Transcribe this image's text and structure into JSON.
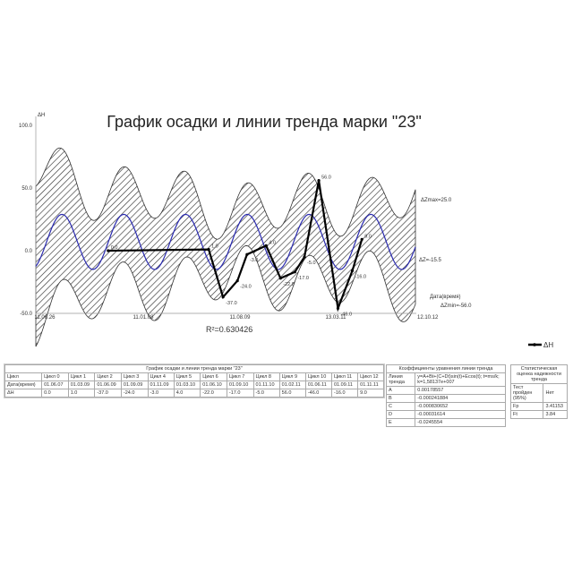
{
  "chart_data": {
    "type": "line",
    "title": "График осадки и линии тренда марки \"23\"",
    "ylabel": "ΔH",
    "xlabel": "Дата(время)",
    "ylim": [
      -50,
      100
    ],
    "yticks": [
      "100.0",
      "50.0",
      "0.0",
      "-50.0"
    ],
    "xticks": [
      "11.06.26",
      "11.01.08",
      "11.08.09",
      "13.03.11",
      "12.10.12"
    ],
    "grid": false,
    "legend_position": "right",
    "series": [
      {
        "name": "ΔH",
        "color": "#000000",
        "x": [
          "01.06.07",
          "01.03.09",
          "01.06.09",
          "01.09.09",
          "01.11.09",
          "01.03.10",
          "01.06.10",
          "01.09.10",
          "01.11.10",
          "01.02.11",
          "01.06.11",
          "01.09.11",
          "01.11.11"
        ],
        "y": [
          0.0,
          1.0,
          -37.0,
          -24.0,
          -3.0,
          4.0,
          -22.0,
          -17.0,
          -5.0,
          56.0,
          -46.0,
          -16.0,
          9.0
        ],
        "labels": [
          "0.0",
          "1.0",
          "-37.0",
          "-24.0",
          "-3.0",
          "4.0",
          "-22.0",
          "-17.0",
          "-5.0",
          "56.0",
          "-46.0",
          "-16.0",
          "9.0"
        ]
      }
    ],
    "trend_color": "#2a2ab0",
    "band": "hatched",
    "annotations": {
      "r2": "R²=0.630426",
      "dzmax": "ΔZmax=25.0",
      "dz": "ΔZ=-15.5",
      "dzmin": "ΔZmin=-56.0"
    }
  },
  "table": {
    "title": "График осадки и линии тренда марки \"23\"",
    "row_headers": [
      "Цикл",
      "Дата(время)",
      "ΔH"
    ],
    "cycles": [
      "Цикл 0",
      "Цикл 1",
      "Цикл 2",
      "Цикл 3",
      "Цикл 4",
      "Цикл 5",
      "Цикл 6",
      "Цикл 7",
      "Цикл 8",
      "Цикл 9",
      "Цикл 10",
      "Цикл 11",
      "Цикл 12"
    ],
    "dates": [
      "01.06.07",
      "01.03.09",
      "01.06.09",
      "01.09.09",
      "01.11.09",
      "01.03.10",
      "01.06.10",
      "01.09.10",
      "01.11.10",
      "01.02.11",
      "01.06.11",
      "01.09.11",
      "01.11.11"
    ],
    "values": [
      "0.0",
      "1.0",
      "-37.0",
      "-24.0",
      "-3.0",
      "4.0",
      "-22.0",
      "-17.0",
      "-5.0",
      "56.0",
      "-46.0",
      "-16.0",
      "9.0"
    ]
  },
  "coefficients": {
    "title": "Коэффициенты уравнения линии тренда",
    "head_left": "Линия тренда",
    "head_right": "y=A+Bt+(C+Dt)sin(t)+Ecos(t); t=ms/k; k=1,58137e+007",
    "rows": [
      [
        "A",
        "0.00178557"
      ],
      [
        "B",
        "-0.000241884"
      ],
      [
        "C",
        "-0.000830652"
      ],
      [
        "D",
        "-0.00031614"
      ],
      [
        "E",
        "-0.0245554"
      ]
    ]
  },
  "stats": {
    "title": "Статистическая оценка надежности тренда",
    "rows": [
      [
        "Тест пройден (95%)",
        "Нет"
      ],
      [
        "Fp",
        "3.41153"
      ],
      [
        "Ft",
        "3.84"
      ]
    ]
  }
}
